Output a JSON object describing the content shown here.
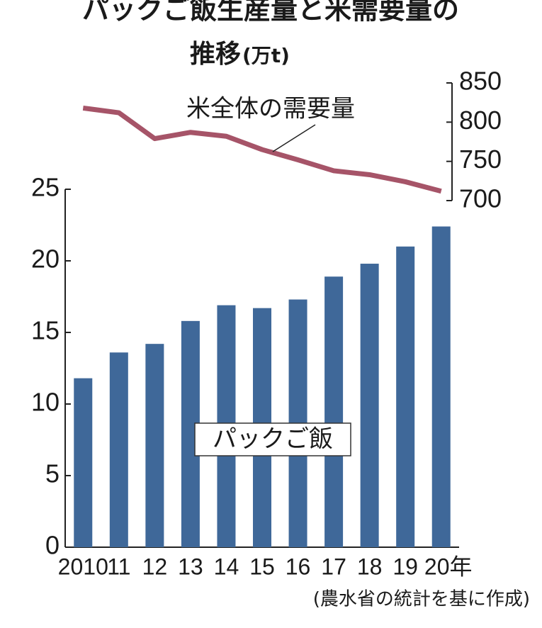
{
  "chart_data": {
    "type": "bar",
    "title": [
      "パックご飯生産量と米需要量の",
      "推移"
    ],
    "unit": "(万t)",
    "categories": [
      "2010",
      "11",
      "12",
      "13",
      "14",
      "15",
      "16",
      "17",
      "18",
      "19",
      "20年"
    ],
    "series": [
      {
        "name": "パックご飯",
        "type": "bar",
        "color": "#3f6899",
        "values": [
          11.8,
          13.6,
          14.2,
          15.8,
          16.9,
          16.7,
          17.3,
          18.9,
          19.8,
          21.0,
          22.4
        ]
      },
      {
        "name": "米全体の需要量",
        "type": "line",
        "axis": "y2",
        "color": "#a65468",
        "values": [
          818,
          812,
          779,
          787,
          782,
          765,
          752,
          738,
          733,
          724,
          712
        ]
      }
    ],
    "ylim": [
      0,
      25
    ],
    "yticks": [
      0,
      5,
      10,
      15,
      20,
      25
    ],
    "y2lim": [
      700,
      850
    ],
    "y2ticks": [
      700,
      750,
      800,
      850
    ],
    "source": "(農水省の統計を基に作成)"
  }
}
